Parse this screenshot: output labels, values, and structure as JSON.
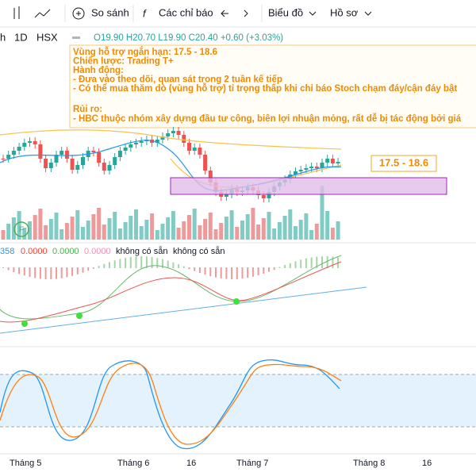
{
  "toolbar": {
    "compare": "So sánh",
    "indicators": "Các chỉ báo",
    "chart": "Biểu đồ",
    "profile": "Hồ sơ"
  },
  "symbol": {
    "name": "h",
    "interval": "1D",
    "exchange": "HSX",
    "ohlc": "O19.90 H20.70 L19.90 C20.40 +0.60 (+3.03%)"
  },
  "note": {
    "lines": [
      "Vùng hỗ trợ ngắn hạn: 17.5 - 18.6",
      "Chiến lược: Trading T+",
      "Hành động:",
      "- Đưa vào theo dõi, quan sát trong 2 tuần kế tiếp",
      "- Có thể mua thăm dò (vùng hỗ trợ) tỉ trọng thấp khi chỉ báo Stoch chạm đáy/cận đáy bật"
    ],
    "risk_title": "Rủi ro:",
    "risk": "- HBC thuộc nhóm xây dựng đầu tư công, biên lợi nhuận mỏng, rất dễ bị tác động bởi giá"
  },
  "zone_label": "17.5 - 18.6",
  "marker": "F",
  "indicator": {
    "values": [
      "358",
      "0.0000",
      "0.0000",
      "0.0000"
    ],
    "na1": "không có sẵn",
    "na2": "không có sẵn"
  },
  "xaxis": [
    "Tháng 5",
    "Tháng 6",
    "16",
    "Tháng 7",
    "Tháng 8",
    "16"
  ]
}
